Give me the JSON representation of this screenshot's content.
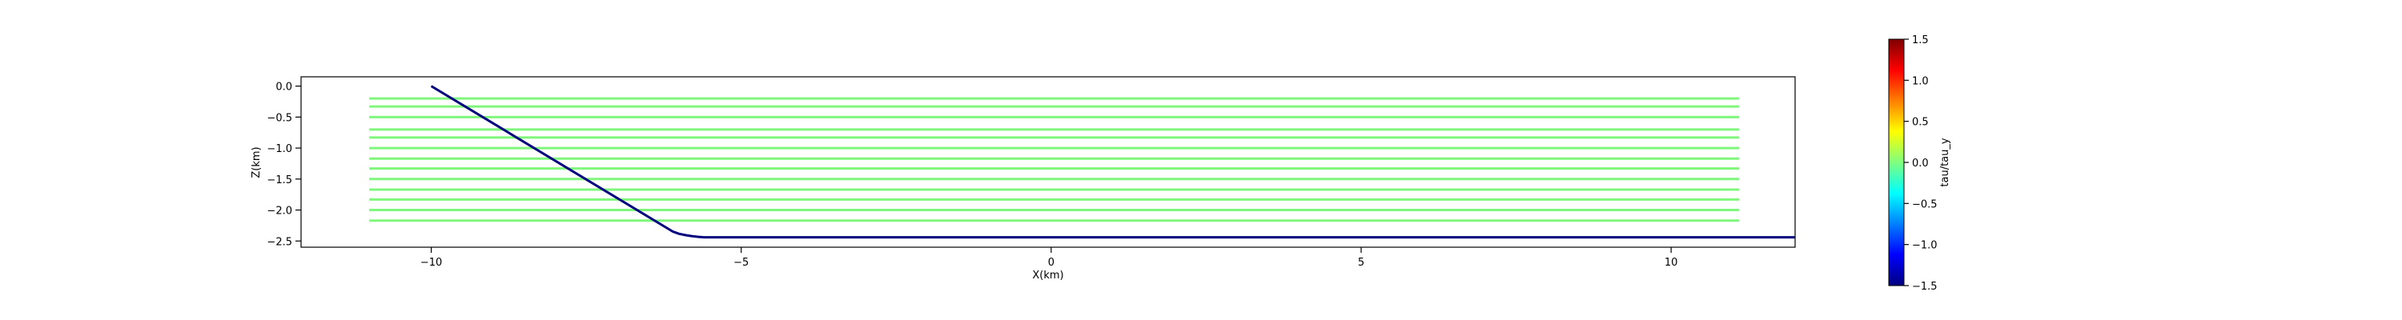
{
  "chart_data": [
    {
      "type": "line",
      "xlabel": "X(km)",
      "ylabel": "Z(km)",
      "xlim": [
        -12.1,
        12.0
      ],
      "ylim": [
        -2.6,
        0.15
      ],
      "xticks": [
        -10,
        -5,
        0,
        5,
        10
      ],
      "xtick_labels": [
        "−10",
        "−5",
        "0",
        "5",
        "10"
      ],
      "yticks": [
        0.0,
        -0.5,
        -1.0,
        -1.5,
        -2.0,
        -2.5
      ],
      "ytick_labels": [
        "0.0",
        "−0.5",
        "−1.0",
        "−1.5",
        "−2.0",
        "−2.5"
      ],
      "grid": false,
      "series": [
        {
          "color": "#00007f",
          "x": [
            -10.0,
            -6.1,
            -6.0,
            -5.9,
            -5.8,
            -5.7,
            -5.6,
            12.0
          ],
          "y": [
            0.0,
            -2.35,
            -2.385,
            -2.405,
            -2.42,
            -2.432,
            -2.44,
            -2.44
          ]
        }
      ],
      "horizontal_segments": {
        "color": "#7ff77a",
        "x_end": 11.1,
        "rows": [
          {
            "y": -0.2,
            "x_start": -11.0
          },
          {
            "y": -0.33,
            "x_start": -11.0
          },
          {
            "y": -0.5,
            "x_start": -11.0
          },
          {
            "y": -0.7,
            "x_start": -11.0
          },
          {
            "y": -0.83,
            "x_start": -11.0
          },
          {
            "y": -1.0,
            "x_start": -11.0
          },
          {
            "y": -1.17,
            "x_start": -11.0
          },
          {
            "y": -1.33,
            "x_start": -11.0
          },
          {
            "y": -1.5,
            "x_start": -11.0
          },
          {
            "y": -1.67,
            "x_start": -11.0
          },
          {
            "y": -1.83,
            "x_start": -11.0
          },
          {
            "y": -2.0,
            "x_start": -11.0
          },
          {
            "y": -2.17,
            "x_start": -11.0
          }
        ]
      }
    },
    {
      "type": "colorbar",
      "label": "tau/tau_y",
      "colormap": [
        "#00007f",
        "#0000ff",
        "#007fff",
        "#00ffff",
        "#7fff7f",
        "#ffff00",
        "#ff7f00",
        "#ff0000",
        "#7f0000"
      ],
      "vmin": -1.5,
      "vmax": 1.5,
      "ticks": [
        1.5,
        1.0,
        0.5,
        0.0,
        -0.5,
        -1.0,
        -1.5
      ],
      "tick_labels": [
        "1.5",
        "1.0",
        "0.5",
        "0.0",
        "−0.5",
        "−1.0",
        "−1.5"
      ]
    }
  ]
}
